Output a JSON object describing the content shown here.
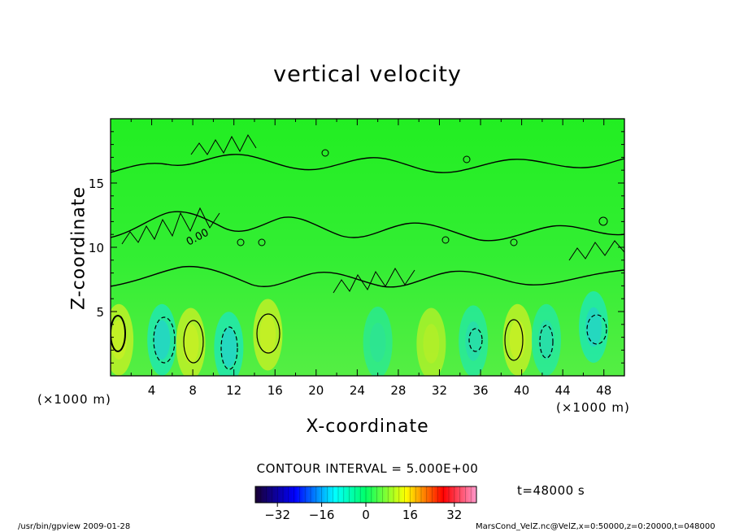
{
  "chart_data": {
    "type": "heatmap",
    "title": "vertical velocity",
    "xlabel": "X-coordinate",
    "ylabel": "Z-coordinate",
    "x_unit": "(×1000 m)",
    "y_unit": "(×1000 m)",
    "xlim": [
      0,
      50
    ],
    "ylim": [
      0,
      20
    ],
    "x_ticks": [
      "4",
      "8",
      "12",
      "16",
      "20",
      "24",
      "28",
      "32",
      "36",
      "40",
      "44",
      "48"
    ],
    "y_ticks": [
      "5",
      "10",
      "15"
    ],
    "contour_interval_text": "CONTOUR INTERVAL = 5.000E+00",
    "contour_label": "0.00",
    "time_text": "t=48000 s",
    "colorbar": {
      "range": [
        -40,
        40
      ],
      "ticks": [
        "−32",
        "−16",
        "0",
        "16",
        "32"
      ],
      "colors": [
        "#1a0033",
        "#0000ff",
        "#00ffff",
        "#00ff66",
        "#ffff00",
        "#ff0000",
        "#ff99cc"
      ]
    },
    "cells": [
      {
        "x": 0.8,
        "z": 2.8,
        "w": 1.0
      },
      {
        "x": 5.0,
        "z": 2.8,
        "w": -1.0
      },
      {
        "x": 7.8,
        "z": 2.5,
        "w": 1.0
      },
      {
        "x": 11.5,
        "z": 2.2,
        "w": -1.0
      },
      {
        "x": 15.3,
        "z": 3.2,
        "w": 1.0
      },
      {
        "x": 26.0,
        "z": 2.6,
        "w": -0.3
      },
      {
        "x": 31.2,
        "z": 2.5,
        "w": 0.6
      },
      {
        "x": 35.3,
        "z": 2.7,
        "w": -0.6
      },
      {
        "x": 39.6,
        "z": 2.8,
        "w": 1.0
      },
      {
        "x": 42.4,
        "z": 2.8,
        "w": -0.6
      },
      {
        "x": 47.0,
        "z": 3.8,
        "w": -1.0
      }
    ]
  },
  "footer": {
    "left": "/usr/bin/gpview  2009-01-28",
    "right": "MarsCond_VelZ.nc@VelZ,x=0:50000,z=0:20000,t=048000"
  }
}
